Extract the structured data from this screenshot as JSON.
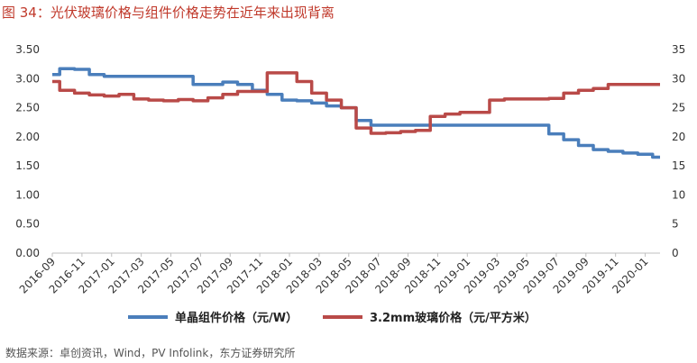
{
  "title": "图 34：光伏玻璃价格与组件价格走势在近年来出现背离",
  "source": "数据来源：卓创资讯，Wind，PV Infolink，东方证券研究所",
  "chart_data": {
    "type": "line",
    "title": "图 34：光伏玻璃价格与组件价格走势在近年来出现背离",
    "categories": [
      "2016-09",
      "2016-10",
      "2016-11",
      "2016-12",
      "2017-01",
      "2017-02",
      "2017-03",
      "2017-04",
      "2017-05",
      "2017-06",
      "2017-07",
      "2017-08",
      "2017-09",
      "2017-10",
      "2017-11",
      "2017-12",
      "2018-01",
      "2018-02",
      "2018-03",
      "2018-04",
      "2018-05",
      "2018-06",
      "2018-07",
      "2018-08",
      "2018-09",
      "2018-10",
      "2018-11",
      "2018-12",
      "2019-01",
      "2019-02",
      "2019-03",
      "2019-04",
      "2019-05",
      "2019-06",
      "2019-07",
      "2019-08",
      "2019-09",
      "2019-10",
      "2019-11",
      "2019-12",
      "2020-01",
      "2020-02"
    ],
    "x_tick_labels": [
      "2016-09",
      "2016-11",
      "2017-01",
      "2017-03",
      "2017-05",
      "2017-07",
      "2017-09",
      "2017-11",
      "2018-01",
      "2018-03",
      "2018-05",
      "2018-07",
      "2018-09",
      "2018-11",
      "2019-01",
      "2019-03",
      "2019-05",
      "2019-07",
      "2019-09",
      "2019-11",
      "2020-01"
    ],
    "y_left": {
      "lim": [
        0,
        3.5
      ],
      "ticks": [
        "0.00",
        "0.50",
        "1.00",
        "1.50",
        "2.00",
        "2.50",
        "3.00",
        "3.50"
      ]
    },
    "y_right": {
      "lim": [
        0,
        35
      ],
      "ticks": [
        "0",
        "5",
        "10",
        "15",
        "20",
        "25",
        "30",
        "35"
      ]
    },
    "series": [
      {
        "name": "单晶组件价格（元/W）",
        "axis": "left",
        "color": "#4a7ebb",
        "values": [
          3.07,
          3.17,
          3.16,
          3.07,
          3.04,
          3.04,
          3.04,
          3.04,
          3.04,
          3.04,
          2.9,
          2.9,
          2.94,
          2.9,
          2.8,
          2.73,
          2.63,
          2.62,
          2.58,
          2.53,
          2.5,
          2.28,
          2.2,
          2.2,
          2.2,
          2.2,
          2.2,
          2.2,
          2.2,
          2.2,
          2.2,
          2.2,
          2.2,
          2.2,
          2.05,
          1.95,
          1.85,
          1.78,
          1.75,
          1.72,
          1.7,
          1.65
        ]
      },
      {
        "name": "3.2mm玻璃价格（元/平方米）",
        "axis": "right",
        "color": "#b94a48",
        "values": [
          29.5,
          28,
          27.5,
          27.2,
          27,
          27.3,
          26.5,
          26.3,
          26.2,
          26.4,
          26.2,
          26.7,
          27.3,
          27.8,
          27.8,
          31,
          31,
          29.5,
          27.5,
          26.3,
          25,
          21.5,
          20.6,
          20.7,
          20.9,
          21.1,
          23.5,
          23.9,
          24.2,
          24.2,
          26.3,
          26.5,
          26.5,
          26.5,
          26.6,
          27.5,
          28,
          28.3,
          29,
          29,
          29,
          29
        ]
      }
    ],
    "legend_position": "bottom",
    "grid": false
  }
}
